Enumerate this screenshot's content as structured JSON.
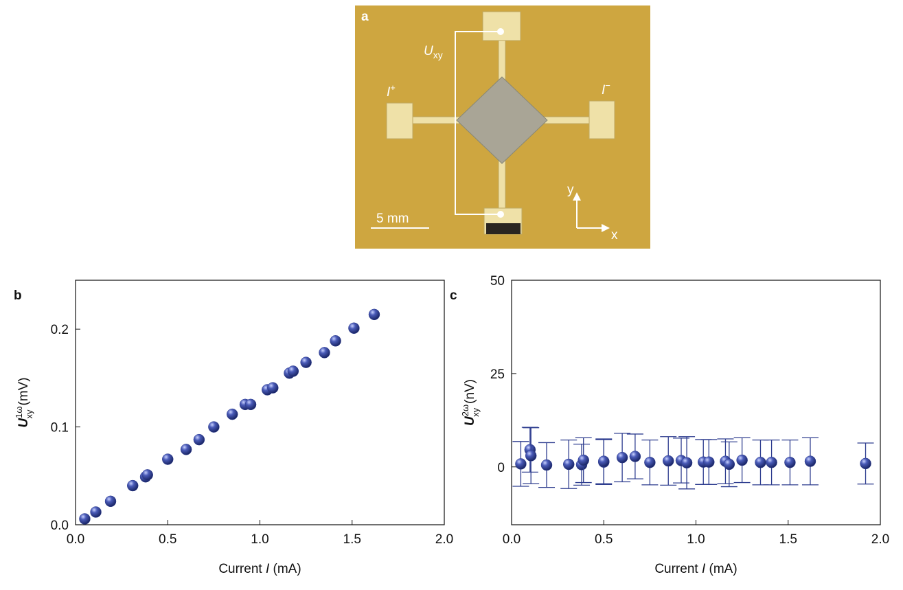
{
  "photo": {
    "panel": "a",
    "voltage": {
      "symbol": "U",
      "sub": "xy"
    },
    "current_plus": {
      "symbol": "I",
      "sup": "+"
    },
    "current_minus": {
      "symbol": "I",
      "sup": "−"
    },
    "scale": "5 mm",
    "axis_y": "y",
    "axis_x": "x"
  },
  "chart_data": [
    {
      "type": "scatter",
      "label": "b",
      "xlabel": [
        "Current",
        "I",
        "(mA)"
      ],
      "ylabel": {
        "symbol": "U",
        "sup": "1ω",
        "sub": "xy",
        "unit": "(mV)"
      },
      "color": "#2e3d8f",
      "xlim": [
        0,
        2
      ],
      "ylim": [
        0,
        0.25
      ],
      "xticks": [
        {
          "value": 0,
          "label": "0.0"
        },
        {
          "value": 0.5,
          "label": "0.5"
        },
        {
          "value": 1,
          "label": "1.0"
        },
        {
          "value": 1.5,
          "label": "1.5"
        },
        {
          "value": 2,
          "label": "2.0"
        }
      ],
      "yticks": [
        {
          "value": 0,
          "label": "0.0"
        },
        0.1,
        0.2
      ],
      "x": [
        0.05,
        0.11,
        0.19,
        0.31,
        0.38,
        0.39,
        0.5,
        0.6,
        0.67,
        0.75,
        0.85,
        0.92,
        0.95,
        1.04,
        1.07,
        1.16,
        1.18,
        1.25,
        1.35,
        1.41,
        1.51,
        1.62
      ],
      "y": [
        0.006,
        0.013,
        0.024,
        0.04,
        0.049,
        0.051,
        0.067,
        0.077,
        0.087,
        0.1,
        0.113,
        0.123,
        0.123,
        0.138,
        0.14,
        0.155,
        0.157,
        0.166,
        0.176,
        0.188,
        0.201,
        0.215
      ]
    },
    {
      "type": "scatter",
      "label": "c",
      "xlabel": [
        "Current",
        "I",
        "(mA)"
      ],
      "ylabel": {
        "symbol": "U",
        "sup": "2ω",
        "sub": "xy",
        "unit": "(nV)"
      },
      "color": "#2e3d8f",
      "xlim": [
        0,
        2
      ],
      "ylim": [
        -15.5,
        50
      ],
      "xticks": [
        {
          "value": 0,
          "label": "0.0"
        },
        {
          "value": 0.5,
          "label": "0.5"
        },
        {
          "value": 1,
          "label": "1.0"
        },
        {
          "value": 1.5,
          "label": "1.5"
        },
        {
          "value": 2,
          "label": "2.0"
        }
      ],
      "yticks": [
        0,
        25,
        50
      ],
      "x": [
        0.05,
        0.1,
        0.105,
        0.19,
        0.31,
        0.38,
        0.39,
        0.5,
        0.5,
        0.6,
        0.67,
        0.75,
        0.85,
        0.92,
        0.95,
        1.04,
        1.07,
        1.16,
        1.18,
        1.25,
        1.35,
        1.41,
        1.51,
        1.62,
        1.92
      ],
      "y": [
        0.8,
        4.6,
        3.0,
        0.5,
        0.7,
        0.6,
        1.8,
        1.3,
        1.5,
        2.5,
        2.8,
        1.2,
        1.6,
        1.7,
        1.1,
        1.3,
        1.3,
        1.5,
        0.7,
        1.8,
        1.2,
        1.2,
        1.2,
        1.5,
        0.9
      ],
      "errors": [
        6,
        6,
        7.5,
        6,
        6.5,
        5.5,
        6,
        6,
        6,
        6.5,
        6,
        6,
        6.5,
        6,
        7,
        6,
        6,
        6,
        6,
        6,
        6,
        6,
        6,
        6.3,
        5.5
      ]
    }
  ]
}
